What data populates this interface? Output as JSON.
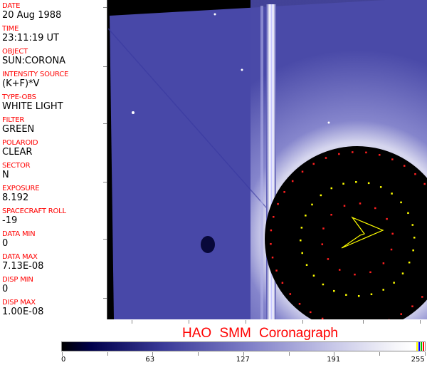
{
  "header_fields": [
    {
      "label": "DATE",
      "value": "20 Aug 1988"
    },
    {
      "label": "TIME",
      "value": "23:11:19 UT"
    },
    {
      "label": "OBJECT",
      "value": "SUN:CORONA"
    },
    {
      "label": "INTENSITY SOURCE",
      "value": "(K+F)*V"
    },
    {
      "label": "TYPE-OBS",
      "value": "WHITE LIGHT"
    },
    {
      "label": "FILTER",
      "value": "GREEN"
    },
    {
      "label": "POLAROID",
      "value": "CLEAR"
    },
    {
      "label": "SECTOR",
      "value": "N"
    },
    {
      "label": "EXPOSURE",
      "value": "8.192"
    },
    {
      "label": "SPACECRAFT ROLL",
      "value": "-19"
    },
    {
      "label": "DATA MIN",
      "value": "0"
    },
    {
      "label": "DATA MAX",
      "value": "7.13E-08"
    },
    {
      "label": "DISP MIN",
      "value": "0"
    },
    {
      "label": "DISP MAX",
      "value": "1.00E-08"
    }
  ],
  "title": "HAO   SMM Coronagraph",
  "colorbar": {
    "labels": [
      "0",
      "63",
      "127",
      "191",
      "255"
    ],
    "marker_colors": [
      "#ffff00",
      "#0000ff",
      "#00c000",
      "#ff0000"
    ]
  },
  "colors": {
    "label": "#ff0000",
    "image_blue": "#4848a8",
    "occulter": "#000000"
  }
}
